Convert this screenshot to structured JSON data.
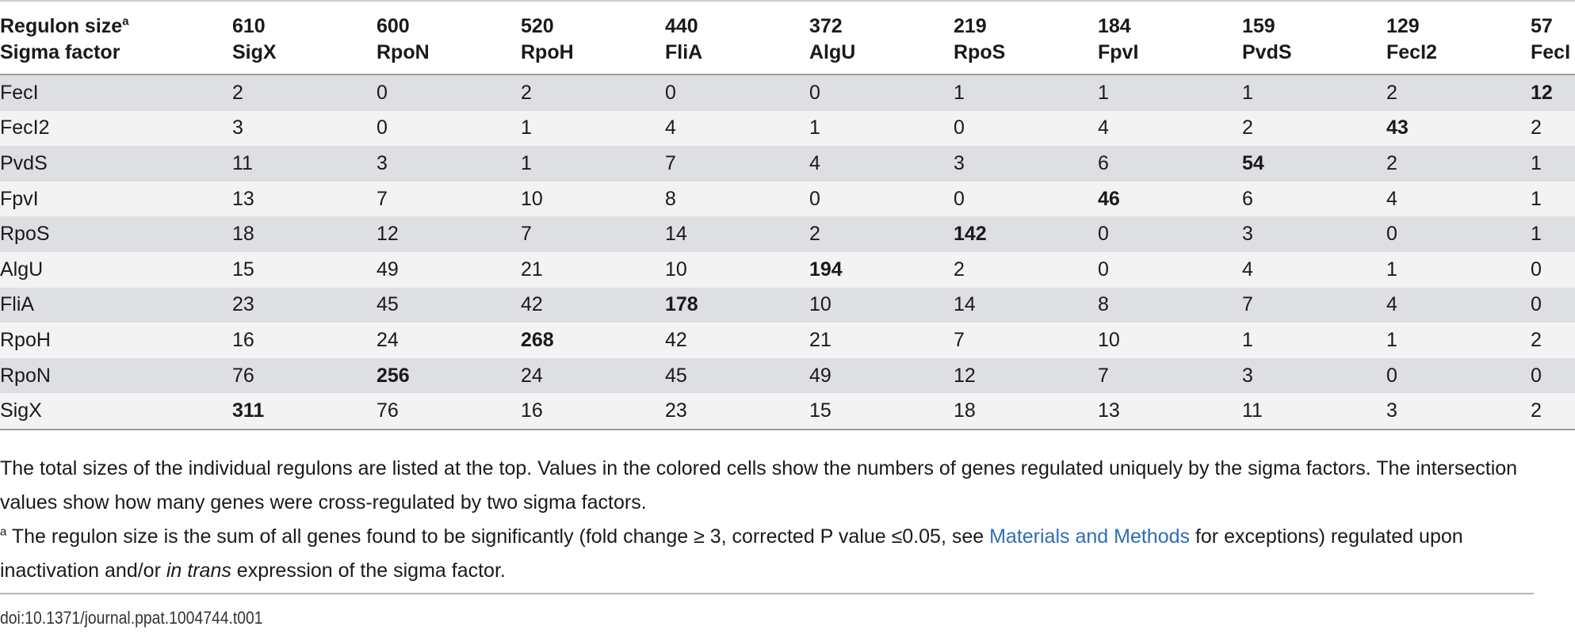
{
  "table": {
    "header_row1_label": "Regulon size",
    "header_row1_sup": "a",
    "header_row2_label": "Sigma factor",
    "columns": [
      {
        "size": "610",
        "name": "SigX"
      },
      {
        "size": "600",
        "name": "RpoN"
      },
      {
        "size": "520",
        "name": "RpoH"
      },
      {
        "size": "440",
        "name": "FliA"
      },
      {
        "size": "372",
        "name": "AlgU"
      },
      {
        "size": "219",
        "name": "RpoS"
      },
      {
        "size": "184",
        "name": "FpvI"
      },
      {
        "size": "159",
        "name": "PvdS"
      },
      {
        "size": "129",
        "name": "FecI2"
      },
      {
        "size": "57",
        "name": "FecI"
      }
    ],
    "rows": [
      {
        "label": "FecI",
        "values": [
          "2",
          "0",
          "2",
          "0",
          "0",
          "1",
          "1",
          "1",
          "2",
          "12"
        ],
        "bold_index": 9
      },
      {
        "label": "FecI2",
        "values": [
          "3",
          "0",
          "1",
          "4",
          "1",
          "0",
          "4",
          "2",
          "43",
          "2"
        ],
        "bold_index": 8
      },
      {
        "label": "PvdS",
        "values": [
          "11",
          "3",
          "1",
          "7",
          "4",
          "3",
          "6",
          "54",
          "2",
          "1"
        ],
        "bold_index": 7
      },
      {
        "label": "FpvI",
        "values": [
          "13",
          "7",
          "10",
          "8",
          "0",
          "0",
          "46",
          "6",
          "4",
          "1"
        ],
        "bold_index": 6
      },
      {
        "label": "RpoS",
        "values": [
          "18",
          "12",
          "7",
          "14",
          "2",
          "142",
          "0",
          "3",
          "0",
          "1"
        ],
        "bold_index": 5
      },
      {
        "label": "AlgU",
        "values": [
          "15",
          "49",
          "21",
          "10",
          "194",
          "2",
          "0",
          "4",
          "1",
          "0"
        ],
        "bold_index": 4
      },
      {
        "label": "FliA",
        "values": [
          "23",
          "45",
          "42",
          "178",
          "10",
          "14",
          "8",
          "7",
          "4",
          "0"
        ],
        "bold_index": 3
      },
      {
        "label": "RpoH",
        "values": [
          "16",
          "24",
          "268",
          "42",
          "21",
          "7",
          "10",
          "1",
          "1",
          "2"
        ],
        "bold_index": 2
      },
      {
        "label": "RpoN",
        "values": [
          "76",
          "256",
          "24",
          "45",
          "49",
          "12",
          "7",
          "3",
          "0",
          "0"
        ],
        "bold_index": 1
      },
      {
        "label": "SigX",
        "values": [
          "311",
          "76",
          "16",
          "23",
          "15",
          "18",
          "13",
          "11",
          "3",
          "2"
        ],
        "bold_index": 0
      }
    ]
  },
  "footnotes": {
    "main": "The total sizes of the individual regulons are listed at the top. Values in the colored cells show the numbers of genes regulated uniquely by the sigma factors. The intersection values show how many genes were cross-regulated by two sigma factors.",
    "a_marker": "a",
    "a_text_before": " The regulon size is the sum of all genes found to be significantly (fold change ≥ 3, corrected P value ≤0.05, see ",
    "a_link": "Materials and Methods",
    "a_text_middle": " for exceptions) regulated upon inactivation and/or ",
    "a_italic": "in trans",
    "a_text_after": " expression of the sigma factor."
  },
  "doi": "doi:10.1371/journal.ppat.1004744.t001",
  "colors": {
    "row_dark": "#dedfe2",
    "row_light": "#f3f3f4",
    "link": "#2e6db4"
  }
}
